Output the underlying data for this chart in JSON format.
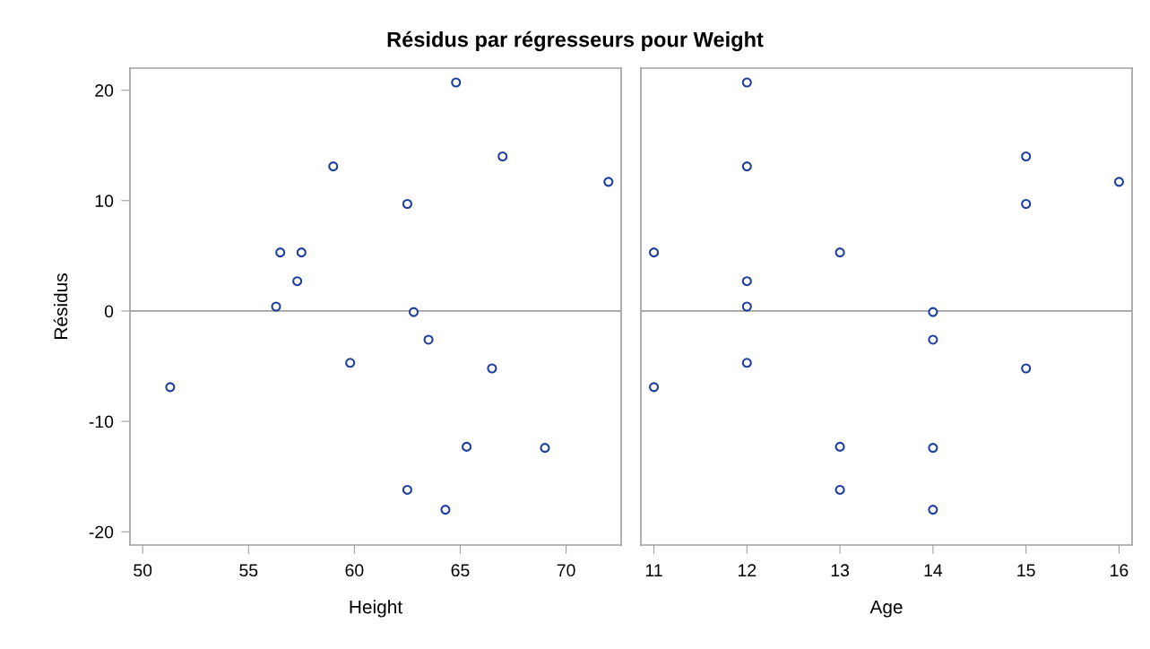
{
  "chart_data": [
    {
      "type": "scatter",
      "title": "Résidus par régresseurs pour Weight",
      "xlabel": "Height",
      "ylabel": "Résidus",
      "series": [
        {
          "color": "#1f3f9c",
          "x": [
            69,
            56.5,
            65.3,
            62.8,
            63.5,
            57.3,
            59.8,
            62.5,
            62.5,
            59,
            51.3,
            64.3,
            56.3,
            66.5,
            72,
            64.8,
            67,
            57.5
          ],
          "values": [
            -12.4,
            5.3,
            -12.3,
            -0.1,
            -2.6,
            2.7,
            -4.7,
            9.7,
            -16.2,
            13.1,
            -6.9,
            -18.0,
            0.4,
            -5.2,
            11.7,
            20.7,
            14.0,
            5.3
          ]
        }
      ],
      "xlim": [
        49.4,
        72.6
      ],
      "xticks": [
        50,
        55,
        60,
        65,
        70
      ],
      "ylim": [
        -21.2,
        22
      ],
      "yticks": [
        -20,
        -10,
        0,
        10,
        20
      ],
      "ref_lines": [
        {
          "axis": "y",
          "value": 0,
          "color": "#a0a0a0"
        }
      ],
      "marker": "circle",
      "grid": false,
      "legend": false
    },
    {
      "type": "scatter",
      "xlabel": "Age",
      "series": [
        {
          "color": "#1f3f9c",
          "x": [
            14,
            13,
            13,
            14,
            14,
            12,
            12,
            15,
            13,
            12,
            11,
            14,
            12,
            15,
            16,
            12,
            15,
            11
          ],
          "values": [
            -12.4,
            5.3,
            -12.3,
            -0.1,
            -2.6,
            2.7,
            -4.7,
            9.7,
            -16.2,
            13.1,
            -6.9,
            -18.0,
            0.4,
            -5.2,
            11.7,
            20.7,
            14.0,
            5.3
          ]
        }
      ],
      "xlim": [
        10.86,
        16.14
      ],
      "xticks": [
        11,
        12,
        13,
        14,
        15,
        16
      ],
      "ylim": [
        -21.2,
        22
      ],
      "yticks": [
        -20,
        -10,
        0,
        10,
        20
      ],
      "ref_lines": [
        {
          "axis": "y",
          "value": 0,
          "color": "#a0a0a0"
        }
      ],
      "marker": "circle",
      "grid": false,
      "legend": false,
      "tick_labels": "x"
    }
  ]
}
